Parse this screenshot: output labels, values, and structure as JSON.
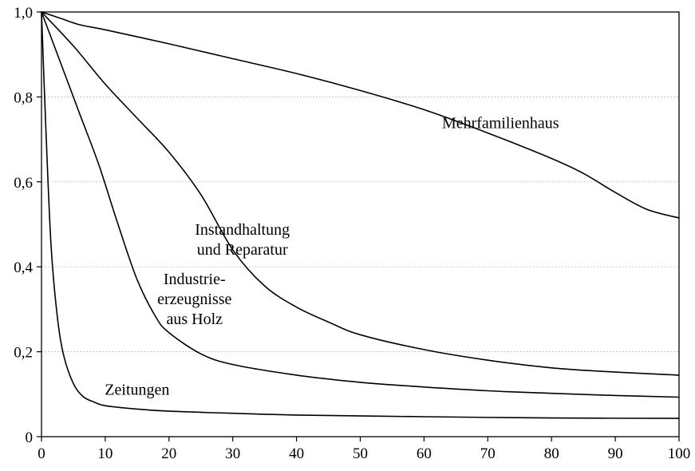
{
  "chart_data": {
    "type": "line",
    "title": "",
    "xlabel": "",
    "ylabel": "",
    "xlim": [
      0,
      100
    ],
    "ylim": [
      0,
      1.0
    ],
    "grid": "horizontal-dotted",
    "legend": "none",
    "x_ticks": [
      {
        "value": 0,
        "label": "0"
      },
      {
        "value": 10,
        "label": "10"
      },
      {
        "value": 20,
        "label": "20"
      },
      {
        "value": 30,
        "label": "30"
      },
      {
        "value": 40,
        "label": "40"
      },
      {
        "value": 50,
        "label": "50"
      },
      {
        "value": 60,
        "label": "60"
      },
      {
        "value": 70,
        "label": "70"
      },
      {
        "value": 80,
        "label": "80"
      },
      {
        "value": 90,
        "label": "90"
      },
      {
        "value": 100,
        "label": "100"
      }
    ],
    "y_ticks": [
      {
        "value": 0,
        "label": "0"
      },
      {
        "value": 0.2,
        "label": "0,2"
      },
      {
        "value": 0.4,
        "label": "0,4"
      },
      {
        "value": 0.6,
        "label": "0,6"
      },
      {
        "value": 0.8,
        "label": "0,8"
      },
      {
        "value": 1.0,
        "label": "1,0"
      }
    ],
    "series": [
      {
        "key": "mehrfamilienhaus",
        "name_lines": [
          "Mehrfamilienhaus"
        ],
        "label_anchor": {
          "x": 72,
          "y": 0.74
        },
        "points": [
          [
            0,
            1.0
          ],
          [
            3,
            0.985
          ],
          [
            6,
            0.97
          ],
          [
            10,
            0.958
          ],
          [
            20,
            0.925
          ],
          [
            30,
            0.89
          ],
          [
            40,
            0.855
          ],
          [
            50,
            0.815
          ],
          [
            60,
            0.77
          ],
          [
            70,
            0.715
          ],
          [
            80,
            0.655
          ],
          [
            85,
            0.62
          ],
          [
            90,
            0.575
          ],
          [
            95,
            0.535
          ],
          [
            100,
            0.515
          ]
        ]
      },
      {
        "key": "instandhaltung",
        "name_lines": [
          "Instandhaltung",
          "und Reparatur"
        ],
        "label_anchor": {
          "x": 31.5,
          "y": 0.465
        },
        "points": [
          [
            0,
            1.0
          ],
          [
            5,
            0.92
          ],
          [
            10,
            0.83
          ],
          [
            15,
            0.75
          ],
          [
            20,
            0.67
          ],
          [
            25,
            0.57
          ],
          [
            30,
            0.44
          ],
          [
            35,
            0.355
          ],
          [
            40,
            0.305
          ],
          [
            45,
            0.27
          ],
          [
            50,
            0.24
          ],
          [
            60,
            0.205
          ],
          [
            70,
            0.18
          ],
          [
            80,
            0.162
          ],
          [
            90,
            0.152
          ],
          [
            100,
            0.145
          ]
        ]
      },
      {
        "key": "industrie",
        "name_lines": [
          "Industrie-",
          "erzeugnisse",
          "aus Holz"
        ],
        "label_anchor": {
          "x": 24,
          "y": 0.325
        },
        "points": [
          [
            0,
            1.0
          ],
          [
            3,
            0.88
          ],
          [
            6,
            0.76
          ],
          [
            9,
            0.64
          ],
          [
            12,
            0.5
          ],
          [
            15,
            0.37
          ],
          [
            18,
            0.28
          ],
          [
            20,
            0.245
          ],
          [
            25,
            0.195
          ],
          [
            30,
            0.17
          ],
          [
            40,
            0.145
          ],
          [
            50,
            0.128
          ],
          [
            60,
            0.117
          ],
          [
            70,
            0.108
          ],
          [
            80,
            0.102
          ],
          [
            90,
            0.097
          ],
          [
            100,
            0.093
          ]
        ]
      },
      {
        "key": "zeitungen",
        "name_lines": [
          "Zeitungen"
        ],
        "label_anchor": {
          "x": 15,
          "y": 0.112
        },
        "points": [
          [
            0,
            1.0
          ],
          [
            0.7,
            0.72
          ],
          [
            1.5,
            0.45
          ],
          [
            2.5,
            0.28
          ],
          [
            3.5,
            0.19
          ],
          [
            5,
            0.125
          ],
          [
            6.5,
            0.095
          ],
          [
            8,
            0.083
          ],
          [
            10,
            0.073
          ],
          [
            15,
            0.065
          ],
          [
            20,
            0.06
          ],
          [
            30,
            0.055
          ],
          [
            40,
            0.051
          ],
          [
            60,
            0.047
          ],
          [
            80,
            0.044
          ],
          [
            100,
            0.043
          ]
        ]
      }
    ]
  }
}
